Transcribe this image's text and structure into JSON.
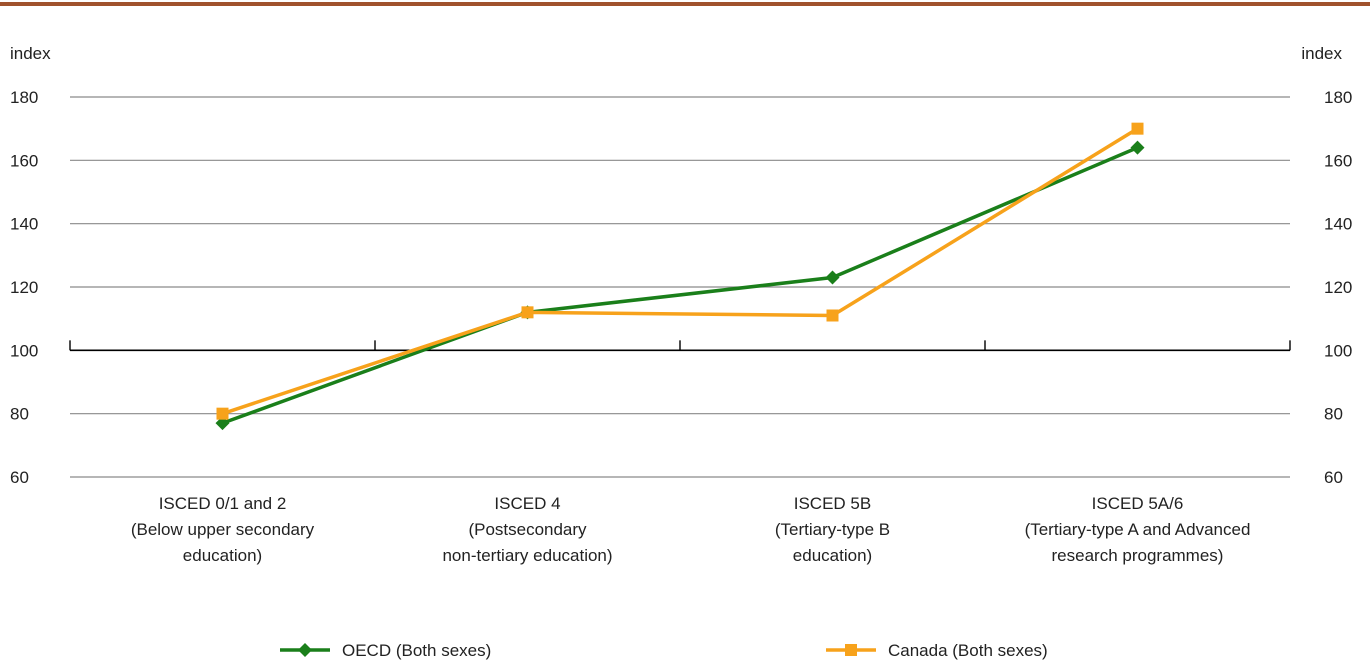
{
  "chart_data": {
    "type": "line",
    "title": "",
    "xlabel": "",
    "ylabel": "index",
    "ylabel_right": "index",
    "ylim": [
      60,
      180
    ],
    "yticks": [
      60,
      80,
      100,
      120,
      140,
      160,
      180
    ],
    "baseline": 100,
    "grid": true,
    "legend_position": "bottom",
    "categories": [
      [
        "ISCED 0/1 and 2",
        "(Below upper secondary",
        "education)"
      ],
      [
        "ISCED 4",
        "(Postsecondary",
        "non-tertiary education)"
      ],
      [
        "ISCED 5B",
        "(Tertiary-type B",
        "education)"
      ],
      [
        "ISCED 5A/6",
        "(Tertiary-type A and Advanced",
        "research programmes)"
      ]
    ],
    "series": [
      {
        "name": "OECD (Both sexes)",
        "values": [
          77,
          112,
          123,
          164
        ],
        "color": "#1a7f1a",
        "marker": "diamond"
      },
      {
        "name": "Canada (Both sexes)",
        "values": [
          80,
          112,
          111,
          170
        ],
        "color": "#f7a21b",
        "marker": "square"
      }
    ]
  },
  "colors": {
    "top_rule": "#a0522d",
    "gridline": "#8a8a8a",
    "baseline": "#000000"
  }
}
